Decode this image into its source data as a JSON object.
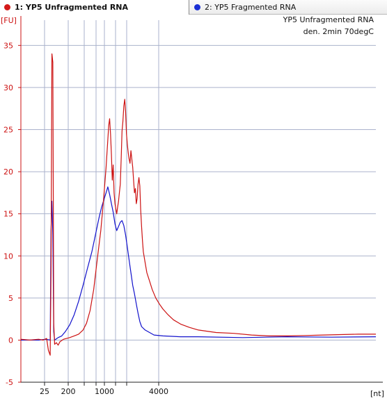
{
  "tabs": [
    {
      "label": "1: YP5 Unfragmented RNA",
      "color": "#d41a1a",
      "active": true
    },
    {
      "label": "2: YP5 Fragmented RNA",
      "color": "#1a2fd4",
      "active": false
    }
  ],
  "chart_data": {
    "type": "line",
    "title": "YP5 Unfragmented RNA",
    "subtitle": "den. 2min 70degC",
    "ylabel": "[FU]",
    "xlabel": "[nt]",
    "ylim": [
      -5,
      38
    ],
    "y_ticks": [
      -5,
      0,
      5,
      10,
      15,
      20,
      25,
      30,
      35
    ],
    "x_ticks": [
      "25",
      "200",
      "1000",
      "4000"
    ],
    "x_scale": "ladder (non-linear)",
    "grid": true,
    "series": [
      {
        "name": "1: YP5 Unfragmented RNA",
        "color": "#cc1111",
        "points": [
          [
            0,
            0.1
          ],
          [
            10,
            0.0
          ],
          [
            20,
            0.1
          ],
          [
            25,
            0.0
          ],
          [
            29,
            0.2
          ],
          [
            31,
            -1.2
          ],
          [
            33,
            -1.8
          ],
          [
            34,
            8
          ],
          [
            35,
            34
          ],
          [
            36,
            33
          ],
          [
            37,
            2
          ],
          [
            38,
            -0.5
          ],
          [
            40,
            -0.3
          ],
          [
            42,
            -0.6
          ],
          [
            44,
            -0.2
          ],
          [
            48,
            0.1
          ],
          [
            55,
            0.3
          ],
          [
            60,
            0.5
          ],
          [
            65,
            0.7
          ],
          [
            70,
            1.2
          ],
          [
            74,
            2.0
          ],
          [
            78,
            3.5
          ],
          [
            82,
            6.0
          ],
          [
            86,
            9.5
          ],
          [
            90,
            13.0
          ],
          [
            93,
            16.5
          ],
          [
            96,
            20.5
          ],
          [
            99,
            25.5
          ],
          [
            100,
            26.3
          ],
          [
            101,
            24.5
          ],
          [
            102,
            22.0
          ],
          [
            103,
            19.0
          ],
          [
            104,
            20.8
          ],
          [
            105,
            17.5
          ],
          [
            106,
            16.2
          ],
          [
            107,
            15.6
          ],
          [
            108,
            15.0
          ],
          [
            109,
            15.8
          ],
          [
            110,
            16.5
          ],
          [
            111,
            17.5
          ],
          [
            112,
            18.5
          ],
          [
            113,
            21.5
          ],
          [
            114,
            24.8
          ],
          [
            115,
            26.0
          ],
          [
            116,
            27.8
          ],
          [
            117,
            28.6
          ],
          [
            118,
            27.2
          ],
          [
            119,
            24.5
          ],
          [
            120,
            23.2
          ],
          [
            121,
            22.2
          ],
          [
            122,
            21.5
          ],
          [
            123,
            21.0
          ],
          [
            124,
            22.5
          ],
          [
            125,
            21.5
          ],
          [
            126,
            20.5
          ],
          [
            127,
            19.0
          ],
          [
            128,
            17.5
          ],
          [
            129,
            18.0
          ],
          [
            130,
            16.2
          ],
          [
            131,
            16.8
          ],
          [
            132,
            18.5
          ],
          [
            133,
            19.3
          ],
          [
            134,
            18.3
          ],
          [
            135,
            15.5
          ],
          [
            136,
            13.5
          ],
          [
            137,
            11.8
          ],
          [
            138,
            10.5
          ],
          [
            140,
            9.2
          ],
          [
            142,
            8.0
          ],
          [
            145,
            7.0
          ],
          [
            148,
            6.0
          ],
          [
            152,
            5.0
          ],
          [
            156,
            4.3
          ],
          [
            160,
            3.7
          ],
          [
            166,
            3.0
          ],
          [
            172,
            2.4
          ],
          [
            180,
            1.9
          ],
          [
            190,
            1.5
          ],
          [
            200,
            1.2
          ],
          [
            220,
            0.9
          ],
          [
            240,
            0.8
          ],
          [
            260,
            0.6
          ],
          [
            280,
            0.5
          ],
          [
            300,
            0.5
          ],
          [
            320,
            0.55
          ],
          [
            340,
            0.6
          ],
          [
            360,
            0.65
          ],
          [
            380,
            0.7
          ],
          [
            400,
            0.7
          ]
        ]
      },
      {
        "name": "2: YP5 Fragmented RNA",
        "color": "#1111cc",
        "points": [
          [
            0,
            0.0
          ],
          [
            10,
            0.0
          ],
          [
            20,
            0.0
          ],
          [
            28,
            0.1
          ],
          [
            33,
            0.0
          ],
          [
            34,
            13
          ],
          [
            35,
            16.5
          ],
          [
            36,
            12.5
          ],
          [
            37,
            1
          ],
          [
            38,
            0.0
          ],
          [
            42,
            0.3
          ],
          [
            46,
            0.5
          ],
          [
            50,
            1.0
          ],
          [
            55,
            1.8
          ],
          [
            60,
            3.0
          ],
          [
            65,
            4.6
          ],
          [
            70,
            6.5
          ],
          [
            75,
            8.5
          ],
          [
            80,
            10.5
          ],
          [
            84,
            12.5
          ],
          [
            88,
            14.5
          ],
          [
            91,
            15.8
          ],
          [
            93,
            16.5
          ],
          [
            96,
            17.5
          ],
          [
            98,
            18.2
          ],
          [
            100,
            17.3
          ],
          [
            102,
            16.2
          ],
          [
            104,
            15.2
          ],
          [
            106,
            13.8
          ],
          [
            108,
            13.0
          ],
          [
            110,
            13.5
          ],
          [
            112,
            14.0
          ],
          [
            114,
            14.2
          ],
          [
            116,
            13.6
          ],
          [
            118,
            12.5
          ],
          [
            120,
            11.0
          ],
          [
            122,
            9.5
          ],
          [
            124,
            8.0
          ],
          [
            126,
            6.5
          ],
          [
            128,
            5.5
          ],
          [
            130,
            4.3
          ],
          [
            132,
            3.2
          ],
          [
            134,
            2.2
          ],
          [
            136,
            1.6
          ],
          [
            140,
            1.2
          ],
          [
            145,
            0.9
          ],
          [
            150,
            0.6
          ],
          [
            160,
            0.5
          ],
          [
            180,
            0.4
          ],
          [
            200,
            0.4
          ],
          [
            250,
            0.3
          ],
          [
            300,
            0.4
          ],
          [
            350,
            0.35
          ],
          [
            400,
            0.4
          ]
        ]
      }
    ]
  }
}
